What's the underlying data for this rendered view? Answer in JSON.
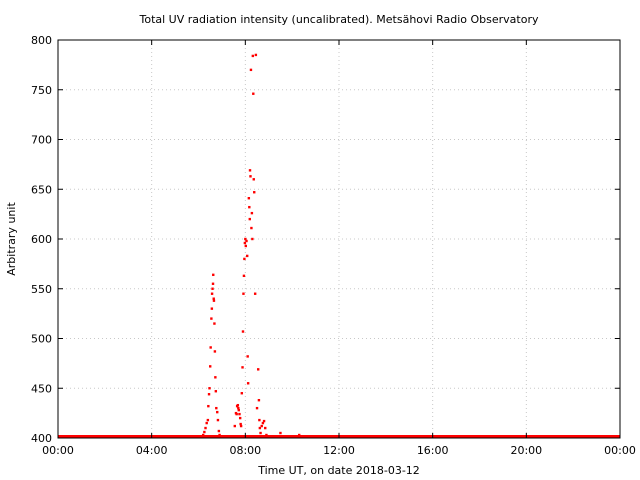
{
  "chart_data": {
    "type": "scatter",
    "title": "Total UV radiation intensity (uncalibrated). Metsähovi Radio Observatory",
    "xlabel": "Time UT, on date 2018-03-12",
    "ylabel": "Arbitrary unit",
    "xlim": [
      0,
      24
    ],
    "ylim": [
      400,
      800
    ],
    "x_ticks": [
      0,
      4,
      8,
      12,
      16,
      20,
      24
    ],
    "x_tick_labels": [
      "00:00",
      "04:00",
      "08:00",
      "12:00",
      "16:00",
      "20:00",
      "00:00"
    ],
    "y_ticks": [
      400,
      450,
      500,
      550,
      600,
      650,
      700,
      750,
      800
    ],
    "y_tick_labels": [
      "400",
      "450",
      "500",
      "550",
      "600",
      "650",
      "700",
      "750",
      "800"
    ],
    "grid": true,
    "marker_color": "#ff0000",
    "baseline": {
      "x_start": 0,
      "x_end": 24,
      "y": 401
    },
    "series": [
      {
        "points": [
          [
            6.2,
            403
          ],
          [
            6.25,
            406
          ],
          [
            6.3,
            410
          ],
          [
            6.35,
            415
          ],
          [
            6.4,
            418
          ],
          [
            6.42,
            432
          ],
          [
            6.45,
            444
          ],
          [
            6.47,
            450
          ],
          [
            6.5,
            472
          ],
          [
            6.52,
            491
          ],
          [
            6.55,
            520
          ],
          [
            6.57,
            530
          ],
          [
            6.58,
            545
          ],
          [
            6.6,
            550
          ],
          [
            6.62,
            555
          ],
          [
            6.63,
            564
          ],
          [
            6.65,
            540
          ],
          [
            6.66,
            538
          ],
          [
            6.68,
            515
          ],
          [
            6.7,
            487
          ],
          [
            6.72,
            461
          ],
          [
            6.74,
            447
          ],
          [
            6.76,
            430
          ],
          [
            6.8,
            426
          ],
          [
            6.83,
            418
          ],
          [
            6.87,
            407
          ],
          [
            6.9,
            403
          ],
          [
            7.55,
            412
          ],
          [
            7.6,
            425
          ],
          [
            7.63,
            424
          ],
          [
            7.65,
            432
          ],
          [
            7.68,
            433
          ],
          [
            7.7,
            430
          ],
          [
            7.72,
            428
          ],
          [
            7.75,
            424
          ],
          [
            7.78,
            420
          ],
          [
            7.8,
            414
          ],
          [
            7.82,
            412
          ],
          [
            7.85,
            445
          ],
          [
            7.88,
            471
          ],
          [
            7.9,
            507
          ],
          [
            7.92,
            545
          ],
          [
            7.94,
            563
          ],
          [
            7.96,
            580
          ],
          [
            7.98,
            596
          ],
          [
            8.0,
            600
          ],
          [
            8.02,
            593
          ],
          [
            8.05,
            598
          ],
          [
            8.08,
            583
          ],
          [
            8.1,
            482
          ],
          [
            8.12,
            455
          ],
          [
            8.15,
            641
          ],
          [
            8.17,
            632
          ],
          [
            8.19,
            620
          ],
          [
            8.2,
            669
          ],
          [
            8.22,
            663
          ],
          [
            8.24,
            770
          ],
          [
            8.26,
            611
          ],
          [
            8.28,
            626
          ],
          [
            8.3,
            600
          ],
          [
            8.32,
            784
          ],
          [
            8.34,
            746
          ],
          [
            8.36,
            660
          ],
          [
            8.38,
            647
          ],
          [
            8.42,
            545
          ],
          [
            8.45,
            785
          ],
          [
            8.5,
            430
          ],
          [
            8.55,
            469
          ],
          [
            8.58,
            438
          ],
          [
            8.6,
            418
          ],
          [
            8.62,
            410
          ],
          [
            8.65,
            405
          ],
          [
            8.7,
            412
          ],
          [
            8.75,
            415
          ],
          [
            8.8,
            417
          ],
          [
            8.85,
            410
          ],
          [
            8.9,
            403
          ],
          [
            9.5,
            405
          ],
          [
            10.3,
            403
          ]
        ]
      }
    ]
  }
}
